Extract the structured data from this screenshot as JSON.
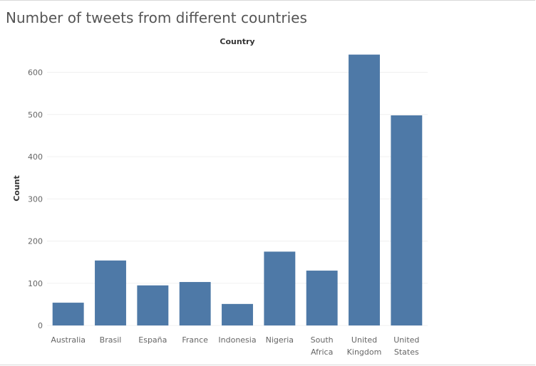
{
  "title": "Number of tweets from different countries",
  "chart_data": {
    "type": "bar",
    "title": "Number of tweets from different countries",
    "header": "Country",
    "xlabel": "",
    "ylabel": "Count",
    "categories": [
      [
        "Australia"
      ],
      [
        "Brasil"
      ],
      [
        "España"
      ],
      [
        "France"
      ],
      [
        "Indonesia"
      ],
      [
        "Nigeria"
      ],
      [
        "South",
        "Africa"
      ],
      [
        "United",
        "Kingdom"
      ],
      [
        "United",
        "States"
      ]
    ],
    "values": [
      54,
      154,
      95,
      103,
      51,
      175,
      130,
      642,
      498
    ],
    "yticks": [
      0,
      100,
      200,
      300,
      400,
      500,
      600
    ],
    "ylim": [
      -10,
      660
    ],
    "bar_color": "#4e79a7",
    "grid": true
  }
}
